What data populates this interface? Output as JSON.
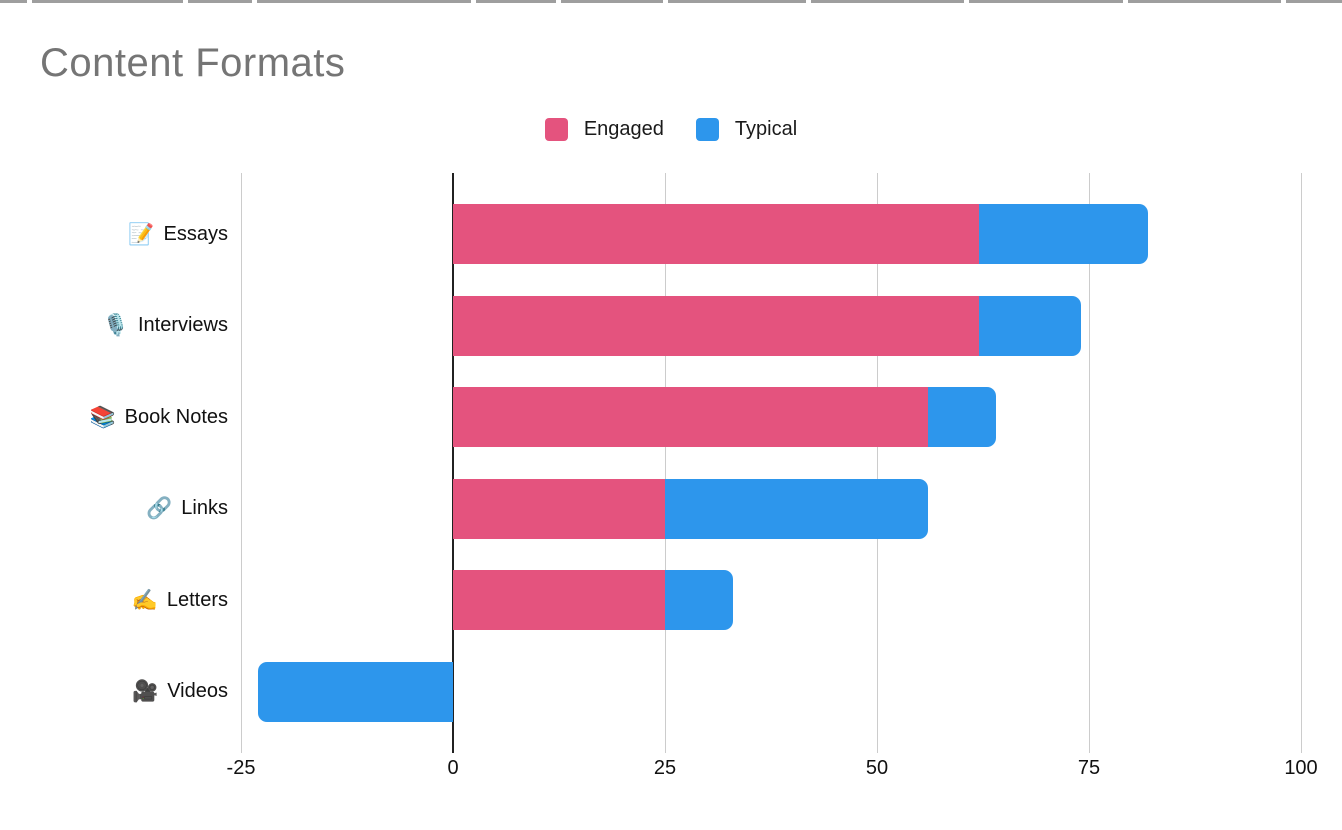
{
  "title": "Content Formats",
  "legend": {
    "items": [
      {
        "label": "Engaged",
        "color": "#E4537E"
      },
      {
        "label": "Typical",
        "color": "#2D96EC"
      }
    ]
  },
  "chart_data": {
    "type": "bar",
    "orientation": "horizontal",
    "stacked": true,
    "title": "Content Formats",
    "categories": [
      "Essays",
      "Interviews",
      "Book Notes",
      "Links",
      "Letters",
      "Videos"
    ],
    "category_icons": [
      "📝",
      "🎙️",
      "📚",
      "🔗",
      "✍️",
      "🎥"
    ],
    "series": [
      {
        "name": "Engaged",
        "color": "#E4537E",
        "values": [
          62,
          62,
          56,
          25,
          25,
          0
        ]
      },
      {
        "name": "Typical",
        "color": "#2D96EC",
        "values": [
          20,
          12,
          8,
          31,
          8,
          -23
        ]
      }
    ],
    "xlim": [
      -25,
      100
    ],
    "x_ticks": [
      -25,
      0,
      25,
      50,
      75,
      100
    ],
    "grid": true,
    "legend_position": "top-center",
    "colors": {
      "grid": "#cccccc",
      "zero_axis": "#212121",
      "title": "#757575",
      "text": "#111111"
    }
  }
}
